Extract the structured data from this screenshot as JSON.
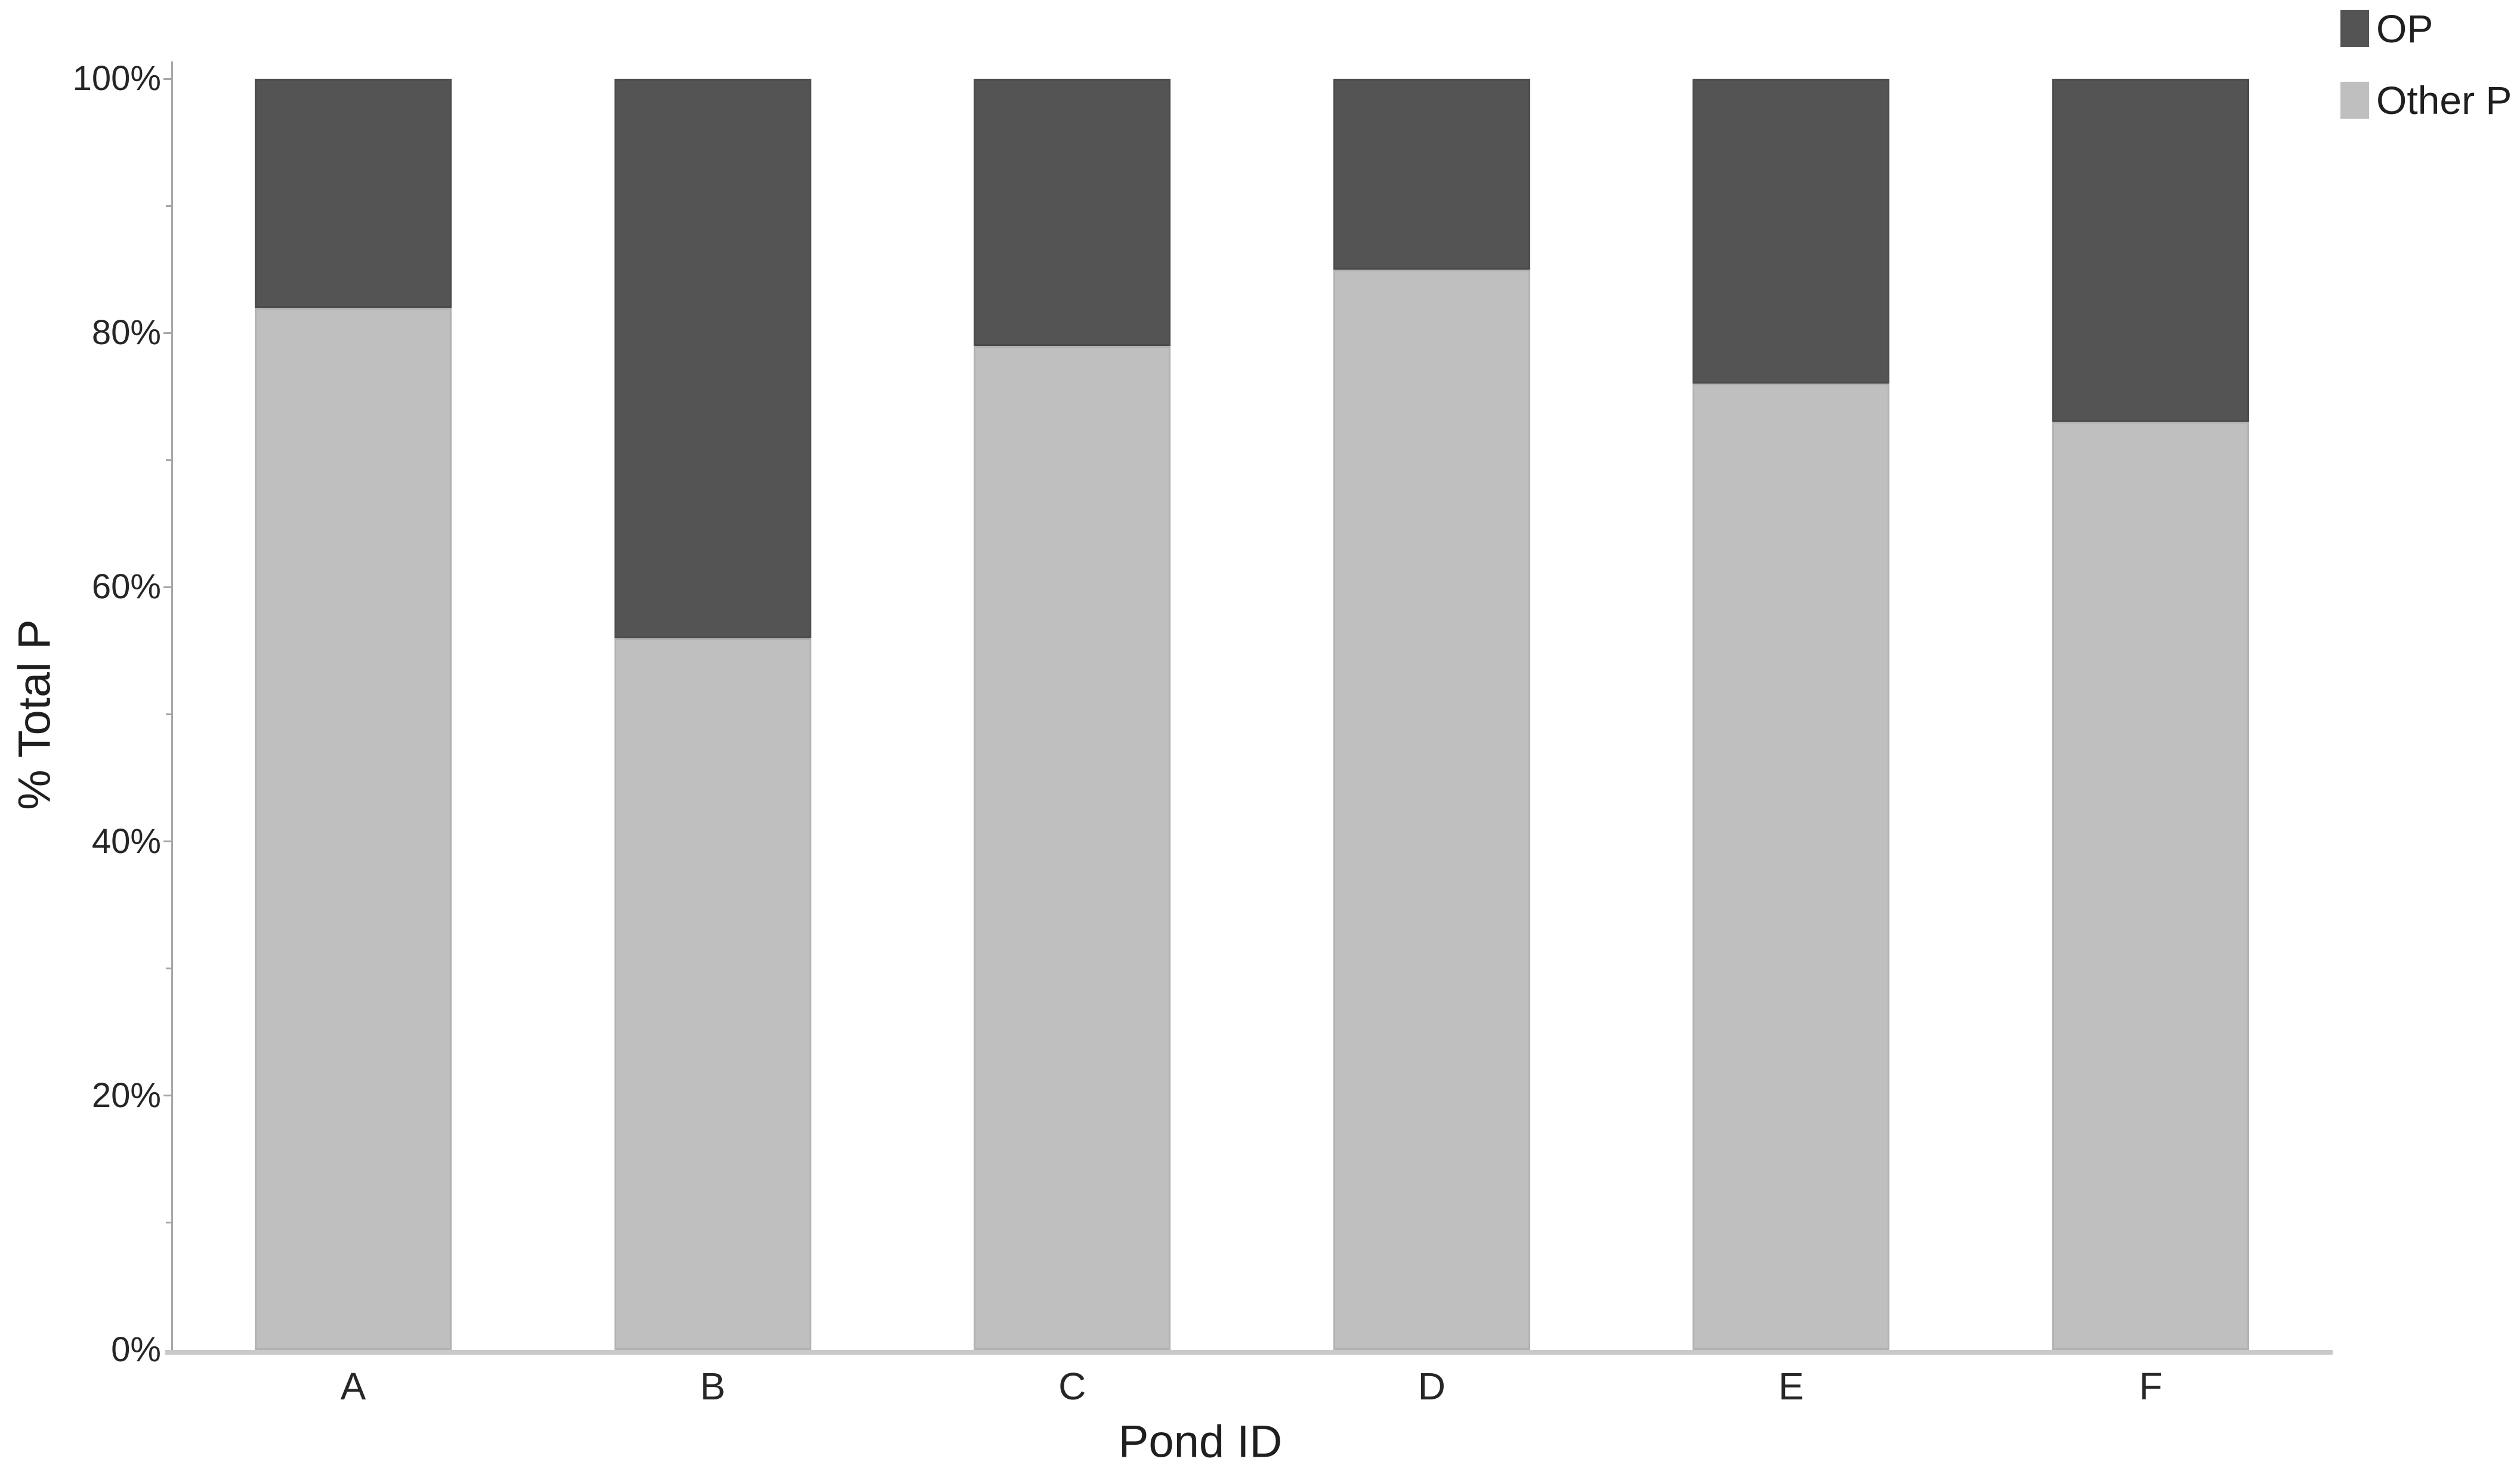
{
  "page": {
    "background": "#ffffff"
  },
  "chart_data": {
    "type": "bar",
    "stacked": true,
    "title": "",
    "xlabel": "Pond ID",
    "ylabel": "% Total P",
    "categories": [
      "A",
      "B",
      "C",
      "D",
      "E",
      "F"
    ],
    "series": [
      {
        "name": "OP",
        "color": "#545454",
        "values": [
          18,
          44,
          21,
          15,
          24,
          27
        ]
      },
      {
        "name": "Other P",
        "color": "#bfbfbf",
        "values": [
          82,
          56,
          79,
          85,
          76,
          73
        ]
      }
    ],
    "ylim": [
      0,
      100
    ],
    "y_tick_labels": [
      "0%",
      "20%",
      "40%",
      "60%",
      "80%",
      "100%"
    ],
    "y_major_tick_step": 20,
    "y_minor_tick_step": 10,
    "grid": false,
    "legend_position": "top-right",
    "axis_color": "#a6a6a6",
    "baseline_color": "#c9c9c9",
    "text_color": "#262626"
  }
}
